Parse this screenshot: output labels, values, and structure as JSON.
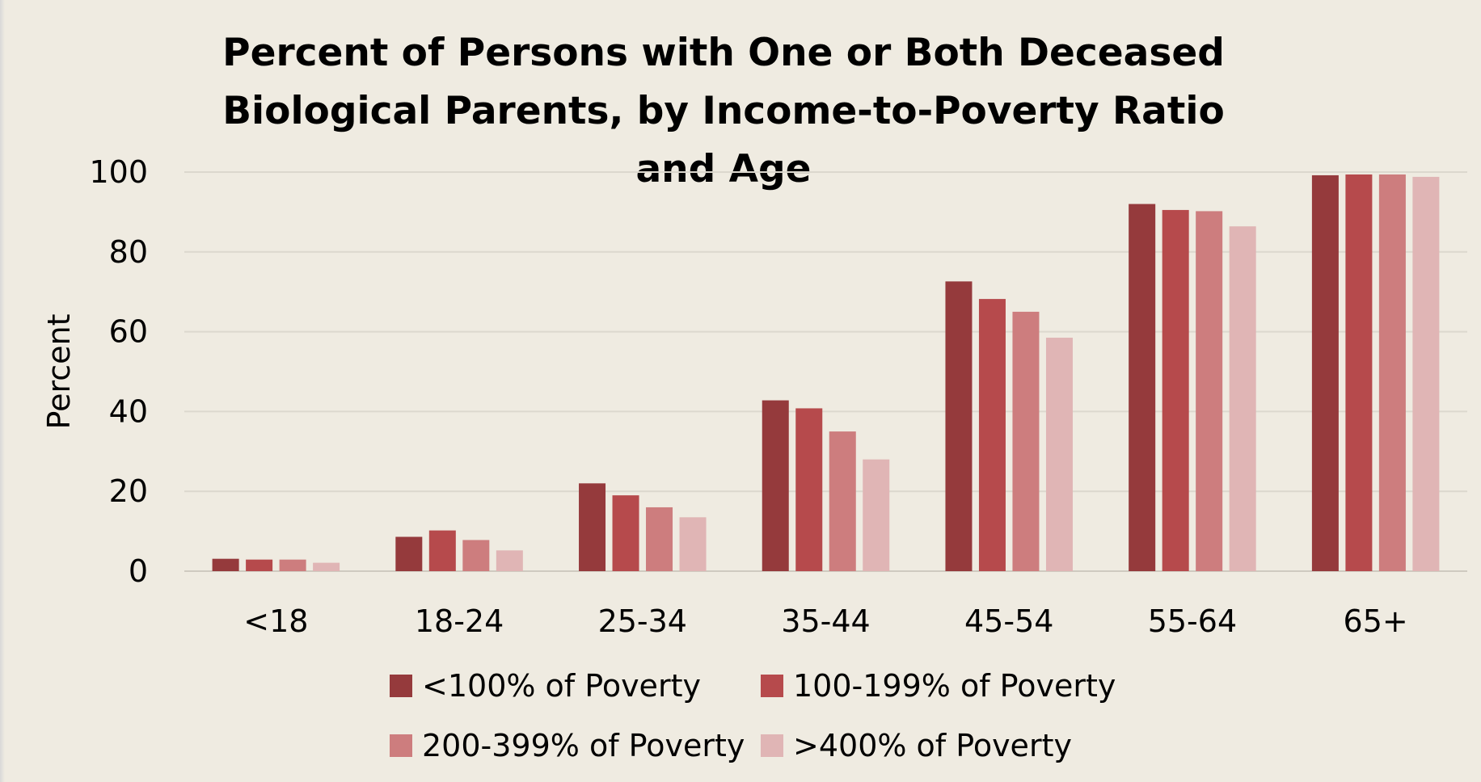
{
  "chart_data": {
    "type": "bar",
    "title": "Percent of Persons with One or Both Deceased Biological Parents, by Income-to-Poverty Ratio and Age",
    "ylabel": "Percent",
    "xlabel": "",
    "ylim": [
      0,
      100
    ],
    "yticks": [
      0,
      20,
      40,
      60,
      80,
      100
    ],
    "grid": true,
    "legend_position": "bottom",
    "categories": [
      "<18",
      "18-24",
      "25-34",
      "35-44",
      "45-54",
      "55-64",
      "65+"
    ],
    "series": [
      {
        "name": "<100% of Poverty",
        "color": "#953a3c",
        "values": [
          3.1,
          8.6,
          22.0,
          42.8,
          72.6,
          92.0,
          99.2
        ]
      },
      {
        "name": "100-199% of Poverty",
        "color": "#b64a4c",
        "values": [
          2.9,
          10.2,
          19.0,
          40.8,
          68.2,
          90.5,
          99.4
        ]
      },
      {
        "name": "200-399% of Poverty",
        "color": "#cd7d7e",
        "values": [
          2.9,
          7.8,
          16.0,
          35.0,
          65.0,
          90.2,
          99.4
        ]
      },
      {
        "name": ">400% of Poverty",
        "color": "#e0b5b5",
        "values": [
          2.1,
          5.2,
          13.5,
          28.0,
          58.5,
          86.4,
          98.8
        ]
      }
    ]
  }
}
